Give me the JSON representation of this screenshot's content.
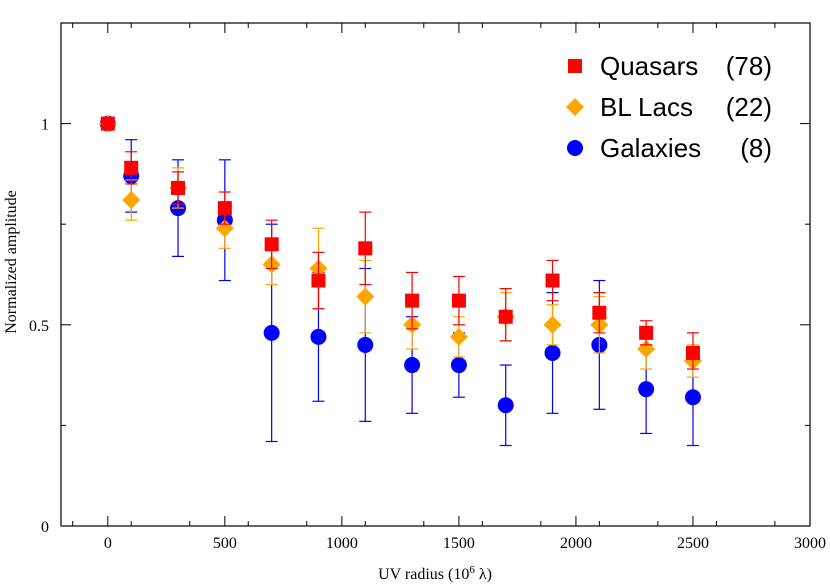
{
  "chart_data": {
    "type": "scatter",
    "title": "",
    "xlabel": "UV radius (10",
    "xlabel_sup": "6",
    "xlabel_unit": " λ)",
    "ylabel": "Normalized amplitude",
    "xlim": [
      -200,
      3000
    ],
    "ylim": [
      0,
      1.25
    ],
    "xticks": [
      0,
      500,
      1000,
      1500,
      2000,
      2500,
      3000
    ],
    "xtick_labels": [
      "0",
      "500",
      "1000",
      "1500",
      "2000",
      "2500",
      "3000"
    ],
    "yticks": [
      0,
      0.5,
      1
    ],
    "ytick_labels": [
      "0",
      "0.5",
      "1"
    ],
    "grid": false,
    "legend_position": "top-right",
    "series": [
      {
        "name": "Quasars",
        "count": "(78)",
        "marker": "square",
        "color": "#ff0000",
        "x": [
          0,
          100,
          300,
          500,
          700,
          900,
          1100,
          1300,
          1500,
          1700,
          1900,
          2100,
          2300,
          2500
        ],
        "y": [
          1.0,
          0.89,
          0.84,
          0.79,
          0.7,
          0.61,
          0.69,
          0.56,
          0.56,
          0.52,
          0.61,
          0.53,
          0.48,
          0.43
        ],
        "err_low": [
          0.0,
          0.04,
          0.04,
          0.04,
          0.06,
          0.07,
          0.09,
          0.07,
          0.06,
          0.06,
          0.05,
          0.05,
          0.03,
          0.04
        ],
        "err_high": [
          0.0,
          0.04,
          0.04,
          0.04,
          0.06,
          0.07,
          0.09,
          0.07,
          0.06,
          0.07,
          0.05,
          0.05,
          0.03,
          0.05
        ]
      },
      {
        "name": "BL Lacs",
        "count": "(22)",
        "marker": "diamond",
        "color": "#ffa500",
        "x": [
          0,
          100,
          300,
          500,
          700,
          900,
          1100,
          1300,
          1500,
          1700,
          1900,
          2100,
          2300,
          2500
        ],
        "y": [
          1.0,
          0.81,
          0.84,
          0.74,
          0.65,
          0.64,
          0.57,
          0.5,
          0.47,
          0.52,
          0.5,
          0.5,
          0.44,
          0.41
        ],
        "err_low": [
          0.0,
          0.05,
          0.05,
          0.05,
          0.05,
          0.1,
          0.09,
          0.06,
          0.05,
          0.06,
          0.05,
          0.07,
          0.05,
          0.04
        ],
        "err_high": [
          0.0,
          0.05,
          0.05,
          0.05,
          0.05,
          0.1,
          0.09,
          0.06,
          0.05,
          0.06,
          0.05,
          0.07,
          0.05,
          0.04
        ]
      },
      {
        "name": "Galaxies",
        "count": "(8)",
        "marker": "circle",
        "color": "#0000ff",
        "x": [
          0,
          100,
          300,
          500,
          700,
          900,
          1100,
          1300,
          1500,
          1700,
          1900,
          2100,
          2300,
          2500
        ],
        "y": [
          1.0,
          0.87,
          0.79,
          0.76,
          0.48,
          0.47,
          0.45,
          0.4,
          0.4,
          0.3,
          0.43,
          0.45,
          0.34,
          0.32
        ],
        "err_low": [
          0.0,
          0.09,
          0.12,
          0.15,
          0.27,
          0.16,
          0.19,
          0.12,
          0.08,
          0.1,
          0.15,
          0.16,
          0.11,
          0.12
        ],
        "err_high": [
          0.0,
          0.09,
          0.12,
          0.15,
          0.27,
          0.16,
          0.19,
          0.12,
          0.08,
          0.1,
          0.15,
          0.16,
          0.11,
          0.12
        ]
      }
    ]
  }
}
